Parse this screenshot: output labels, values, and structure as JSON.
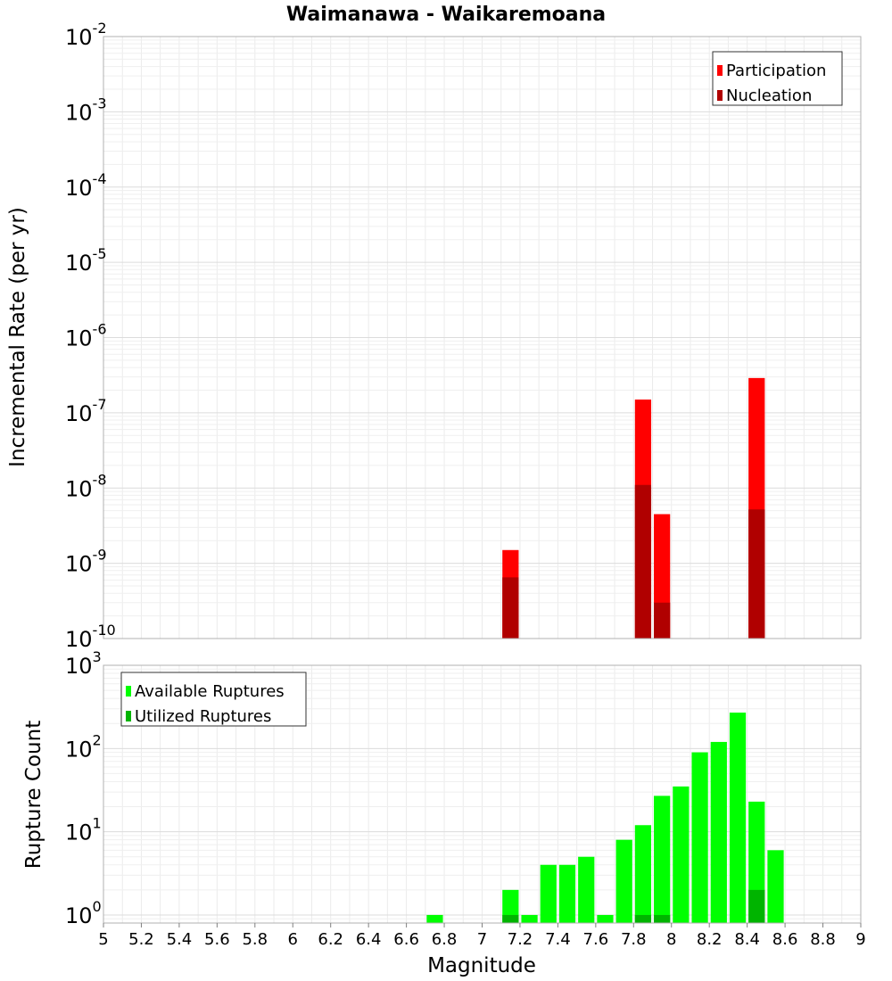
{
  "chart_data": [
    {
      "type": "bar",
      "title": "Waimanawa - Waikaremoana",
      "xlabel": "",
      "ylabel": "Incremental Rate (per yr)",
      "y_scale": "log",
      "ylim": [
        1e-10,
        0.01
      ],
      "xlim": [
        5,
        9
      ],
      "bin_width": 0.1,
      "grid": true,
      "legend_position": "top-right",
      "y_tick_labels": [
        {
          "base": "10",
          "exp": "-10"
        },
        {
          "base": "10",
          "exp": "-9"
        },
        {
          "base": "10",
          "exp": "-8"
        },
        {
          "base": "10",
          "exp": "-7"
        },
        {
          "base": "10",
          "exp": "-6"
        },
        {
          "base": "10",
          "exp": "-5"
        },
        {
          "base": "10",
          "exp": "-4"
        },
        {
          "base": "10",
          "exp": "-3"
        },
        {
          "base": "10",
          "exp": "-2"
        }
      ],
      "series": [
        {
          "name": "Participation",
          "color": "#ff0000",
          "x": [
            7.15,
            7.85,
            7.95,
            8.45
          ],
          "values": [
            1.5e-09,
            1.5e-07,
            4.5e-09,
            2.9e-07
          ]
        },
        {
          "name": "Nucleation",
          "color": "#b00000",
          "x": [
            7.15,
            7.85,
            7.95,
            8.45
          ],
          "values": [
            6.5e-10,
            1.1e-08,
            3e-10,
            5.2e-09
          ]
        }
      ]
    },
    {
      "type": "bar",
      "xlabel": "Magnitude",
      "ylabel": "Rupture Count",
      "y_scale": "log",
      "ylim": [
        0.8,
        1000
      ],
      "xlim": [
        5,
        9
      ],
      "bin_width": 0.1,
      "grid": true,
      "legend_position": "top-left",
      "x_tick_labels": [
        "5",
        "5.2",
        "5.4",
        "5.6",
        "5.8",
        "6",
        "6.2",
        "6.4",
        "6.6",
        "6.8",
        "7",
        "7.2",
        "7.4",
        "7.6",
        "7.8",
        "8",
        "8.2",
        "8.4",
        "8.6",
        "8.8",
        "9"
      ],
      "y_tick_labels": [
        {
          "base": "10",
          "exp": "0"
        },
        {
          "base": "10",
          "exp": "1"
        },
        {
          "base": "10",
          "exp": "2"
        },
        {
          "base": "10",
          "exp": "3"
        }
      ],
      "series": [
        {
          "name": "Available Ruptures",
          "color": "#00ff00",
          "x": [
            6.75,
            7.15,
            7.25,
            7.35,
            7.45,
            7.55,
            7.65,
            7.75,
            7.85,
            7.95,
            8.05,
            8.15,
            8.25,
            8.35,
            8.45,
            8.55
          ],
          "values": [
            1,
            2,
            1,
            4,
            4,
            5,
            1,
            8,
            12,
            27,
            35,
            90,
            120,
            270,
            23,
            6
          ]
        },
        {
          "name": "Utilized Ruptures",
          "color": "#00b400",
          "x": [
            7.15,
            7.85,
            7.95,
            8.45
          ],
          "values": [
            1,
            1,
            1,
            2
          ]
        }
      ]
    }
  ]
}
